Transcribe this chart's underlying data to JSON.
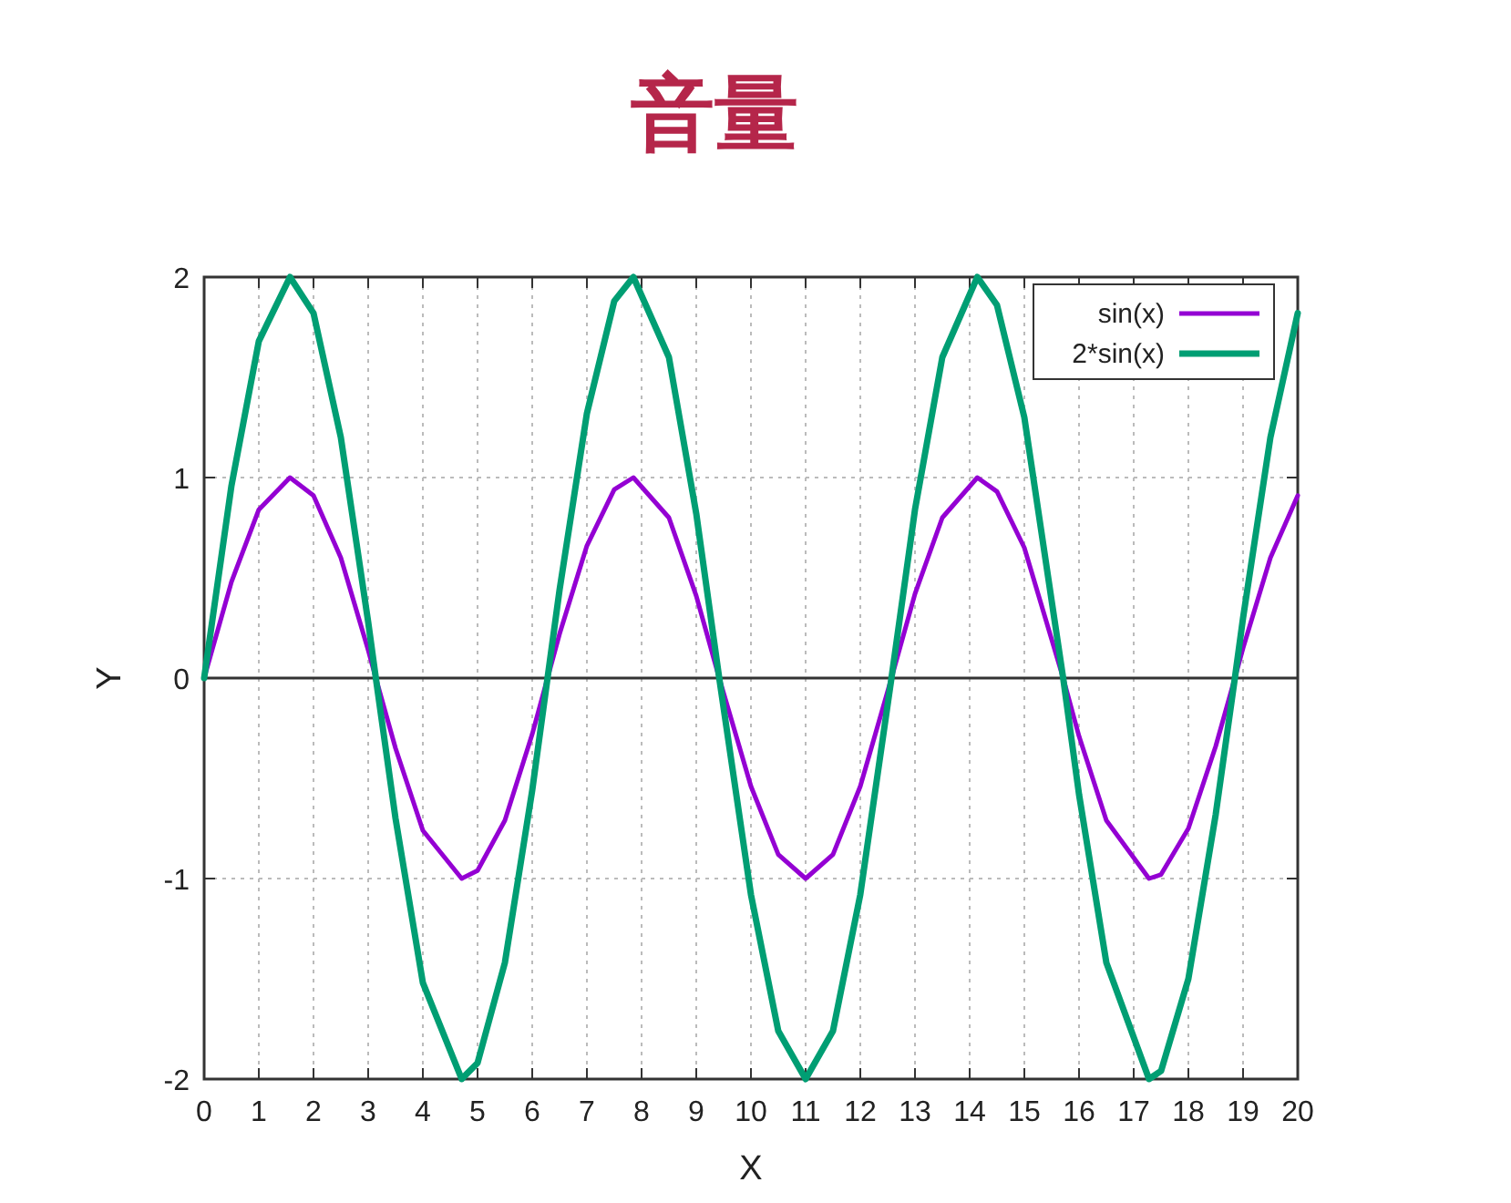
{
  "chart_data": {
    "type": "line",
    "title": "音量",
    "xlabel": "X",
    "ylabel": "Y",
    "xlim": [
      0,
      20
    ],
    "ylim": [
      -2,
      2
    ],
    "xticks": [
      0,
      1,
      2,
      3,
      4,
      5,
      6,
      7,
      8,
      9,
      10,
      11,
      12,
      13,
      14,
      15,
      16,
      17,
      18,
      19,
      20
    ],
    "yticks": [
      -2,
      -1,
      0,
      1,
      2
    ],
    "grid": true,
    "legend": "top right",
    "line_style": "solid",
    "marker": "none",
    "ref_lines": [
      {
        "axis": "y",
        "value": 0,
        "color": "#333333"
      }
    ],
    "series": [
      {
        "name": "sin(x)",
        "color": "#9400d3",
        "x": [
          0,
          0.5,
          1,
          1.57,
          2,
          2.5,
          3,
          3.14,
          3.5,
          4,
          4.71,
          5,
          5.5,
          6,
          6.28,
          6.5,
          7,
          7.5,
          7.85,
          8.5,
          9,
          9.42,
          10,
          10.5,
          11,
          11.5,
          12,
          12.57,
          13,
          13.5,
          14.14,
          14.5,
          15,
          15.71,
          16,
          16.5,
          17.28,
          17.5,
          18,
          18.5,
          18.85,
          19,
          19.5,
          20
        ],
        "values": [
          0,
          0.48,
          0.84,
          1,
          0.91,
          0.6,
          0.14,
          0,
          -0.35,
          -0.76,
          -1,
          -0.96,
          -0.71,
          -0.28,
          0,
          0.22,
          0.66,
          0.94,
          1,
          0.8,
          0.41,
          0,
          -0.54,
          -0.88,
          -1,
          -0.88,
          -0.54,
          0,
          0.42,
          0.8,
          1,
          0.93,
          0.65,
          0,
          -0.29,
          -0.71,
          -1,
          -0.98,
          -0.75,
          -0.34,
          0,
          0.15,
          0.6,
          0.91
        ]
      },
      {
        "name": "2*sin(x)",
        "color": "#009e73",
        "x": [
          0,
          0.5,
          1,
          1.57,
          2,
          2.5,
          3,
          3.14,
          3.5,
          4,
          4.71,
          5,
          5.5,
          6,
          6.28,
          6.5,
          7,
          7.5,
          7.85,
          8.5,
          9,
          9.42,
          10,
          10.5,
          11,
          11.5,
          12,
          12.57,
          13,
          13.5,
          14.14,
          14.5,
          15,
          15.71,
          16,
          16.5,
          17.28,
          17.5,
          18,
          18.5,
          18.85,
          19,
          19.5,
          20
        ],
        "values": [
          0,
          0.96,
          1.68,
          2,
          1.82,
          1.2,
          0.28,
          0,
          -0.7,
          -1.52,
          -2,
          -1.92,
          -1.42,
          -0.56,
          0,
          0.44,
          1.32,
          1.88,
          2,
          1.6,
          0.82,
          0,
          -1.08,
          -1.76,
          -2,
          -1.76,
          -1.08,
          0,
          0.84,
          1.6,
          2,
          1.86,
          1.3,
          0,
          -0.58,
          -1.42,
          -2,
          -1.96,
          -1.5,
          -0.68,
          0,
          0.3,
          1.2,
          1.82
        ]
      }
    ]
  }
}
